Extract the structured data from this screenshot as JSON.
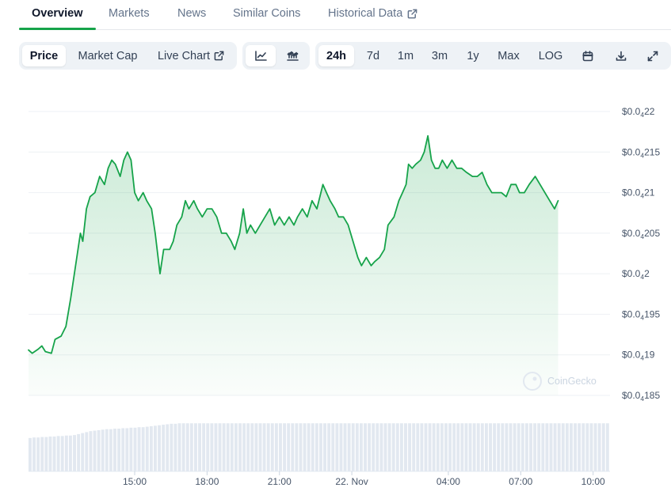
{
  "tabs": [
    {
      "label": "Overview",
      "active": true
    },
    {
      "label": "Markets"
    },
    {
      "label": "News"
    },
    {
      "label": "Similar Coins"
    },
    {
      "label": "Historical Data",
      "external": true
    }
  ],
  "toolbar": {
    "metric": [
      {
        "label": "Price",
        "active": true
      },
      {
        "label": "Market Cap"
      },
      {
        "label": "Live Chart",
        "external": true
      }
    ],
    "chart_style": [
      {
        "icon": "line-chart-icon",
        "active": true
      },
      {
        "icon": "candlestick-chart-icon"
      }
    ],
    "ranges": [
      {
        "label": "24h",
        "active": true
      },
      {
        "label": "7d"
      },
      {
        "label": "1m"
      },
      {
        "label": "3m"
      },
      {
        "label": "1y"
      },
      {
        "label": "Max"
      },
      {
        "label": "LOG"
      }
    ],
    "actions": [
      {
        "icon": "calendar-icon"
      },
      {
        "icon": "download-icon"
      },
      {
        "icon": "expand-icon"
      }
    ]
  },
  "watermark": "CoinGecko",
  "chart_data": {
    "type": "area",
    "line_color": "#16a34a",
    "fill_color": "#16a34a",
    "y_ticks": [
      {
        "value": 1.85e-05,
        "prefix": "$0.0",
        "sub": "4",
        "suffix": "185"
      },
      {
        "value": 1.9e-05,
        "prefix": "$0.0",
        "sub": "4",
        "suffix": "19"
      },
      {
        "value": 1.95e-05,
        "prefix": "$0.0",
        "sub": "4",
        "suffix": "195"
      },
      {
        "value": 2e-05,
        "prefix": "$0.0",
        "sub": "4",
        "suffix": "2"
      },
      {
        "value": 2.05e-05,
        "prefix": "$0.0",
        "sub": "4",
        "suffix": "205"
      },
      {
        "value": 2.1e-05,
        "prefix": "$0.0",
        "sub": "4",
        "suffix": "21"
      },
      {
        "value": 2.15e-05,
        "prefix": "$0.0",
        "sub": "4",
        "suffix": "215"
      },
      {
        "value": 2.2e-05,
        "prefix": "$0.0",
        "sub": "4",
        "suffix": "22"
      }
    ],
    "ylim": [
      1.85e-05,
      2.2e-05
    ],
    "x_ticks": [
      {
        "hour": 15,
        "label": "15:00"
      },
      {
        "hour": 18,
        "label": "18:00"
      },
      {
        "hour": 21,
        "label": "21:00"
      },
      {
        "hour": 24,
        "label": "22. Nov"
      },
      {
        "hour": 28,
        "label": "04:00"
      },
      {
        "hour": 31,
        "label": "07:00"
      },
      {
        "hour": 34,
        "label": "10:00"
      }
    ],
    "xlim": [
      10.6,
      34.7
    ],
    "series": [
      {
        "points": [
          [
            10.6,
            1.906e-05
          ],
          [
            10.75,
            1.902e-05
          ],
          [
            11.0,
            1.907e-05
          ],
          [
            11.15,
            1.911e-05
          ],
          [
            11.3,
            1.904e-05
          ],
          [
            11.55,
            1.902e-05
          ],
          [
            11.7,
            1.919e-05
          ],
          [
            11.95,
            1.923e-05
          ],
          [
            12.15,
            1.935e-05
          ],
          [
            12.35,
            1.97e-05
          ],
          [
            12.55,
            2.01e-05
          ],
          [
            12.75,
            2.05e-05
          ],
          [
            12.85,
            2.04e-05
          ],
          [
            13.0,
            2.08e-05
          ],
          [
            13.15,
            2.095e-05
          ],
          [
            13.35,
            2.1e-05
          ],
          [
            13.55,
            2.12e-05
          ],
          [
            13.75,
            2.11e-05
          ],
          [
            13.9,
            2.13e-05
          ],
          [
            14.05,
            2.14e-05
          ],
          [
            14.2,
            2.135e-05
          ],
          [
            14.4,
            2.12e-05
          ],
          [
            14.55,
            2.14e-05
          ],
          [
            14.7,
            2.15e-05
          ],
          [
            14.85,
            2.14e-05
          ],
          [
            15.0,
            2.1e-05
          ],
          [
            15.15,
            2.09e-05
          ],
          [
            15.35,
            2.1e-05
          ],
          [
            15.5,
            2.09e-05
          ],
          [
            15.7,
            2.08e-05
          ],
          [
            15.85,
            2.05e-05
          ],
          [
            16.05,
            2e-05
          ],
          [
            16.2,
            2.03e-05
          ],
          [
            16.45,
            2.03e-05
          ],
          [
            16.6,
            2.04e-05
          ],
          [
            16.75,
            2.06e-05
          ],
          [
            16.95,
            2.07e-05
          ],
          [
            17.1,
            2.09e-05
          ],
          [
            17.25,
            2.08e-05
          ],
          [
            17.45,
            2.09e-05
          ],
          [
            17.6,
            2.08e-05
          ],
          [
            17.8,
            2.07e-05
          ],
          [
            18.0,
            2.08e-05
          ],
          [
            18.2,
            2.08e-05
          ],
          [
            18.4,
            2.07e-05
          ],
          [
            18.6,
            2.05e-05
          ],
          [
            18.8,
            2.05e-05
          ],
          [
            19.0,
            2.04e-05
          ],
          [
            19.15,
            2.03e-05
          ],
          [
            19.35,
            2.05e-05
          ],
          [
            19.5,
            2.08e-05
          ],
          [
            19.65,
            2.05e-05
          ],
          [
            19.8,
            2.06e-05
          ],
          [
            20.0,
            2.05e-05
          ],
          [
            20.2,
            2.06e-05
          ],
          [
            20.4,
            2.07e-05
          ],
          [
            20.6,
            2.08e-05
          ],
          [
            20.8,
            2.06e-05
          ],
          [
            21.0,
            2.07e-05
          ],
          [
            21.2,
            2.06e-05
          ],
          [
            21.4,
            2.07e-05
          ],
          [
            21.6,
            2.06e-05
          ],
          [
            21.75,
            2.07e-05
          ],
          [
            21.95,
            2.08e-05
          ],
          [
            22.15,
            2.07e-05
          ],
          [
            22.35,
            2.09e-05
          ],
          [
            22.55,
            2.08e-05
          ],
          [
            22.8,
            2.11e-05
          ],
          [
            22.95,
            2.1e-05
          ],
          [
            23.1,
            2.09e-05
          ],
          [
            23.3,
            2.08e-05
          ],
          [
            23.45,
            2.07e-05
          ],
          [
            23.65,
            2.07e-05
          ],
          [
            23.85,
            2.06e-05
          ],
          [
            24.05,
            2.04e-05
          ],
          [
            24.25,
            2.02e-05
          ],
          [
            24.4,
            2.01e-05
          ],
          [
            24.6,
            2.02e-05
          ],
          [
            24.8,
            2.01e-05
          ],
          [
            24.95,
            2.015e-05
          ],
          [
            25.15,
            2.02e-05
          ],
          [
            25.35,
            2.03e-05
          ],
          [
            25.5,
            2.06e-05
          ],
          [
            25.75,
            2.07e-05
          ],
          [
            25.95,
            2.09e-05
          ],
          [
            26.1,
            2.1e-05
          ],
          [
            26.25,
            2.11e-05
          ],
          [
            26.35,
            2.135e-05
          ],
          [
            26.5,
            2.13e-05
          ],
          [
            26.65,
            2.135e-05
          ],
          [
            26.85,
            2.14e-05
          ],
          [
            27.0,
            2.15e-05
          ],
          [
            27.15,
            2.17e-05
          ],
          [
            27.3,
            2.14e-05
          ],
          [
            27.45,
            2.13e-05
          ],
          [
            27.6,
            2.13e-05
          ],
          [
            27.75,
            2.14e-05
          ],
          [
            27.95,
            2.13e-05
          ],
          [
            28.15,
            2.14e-05
          ],
          [
            28.35,
            2.13e-05
          ],
          [
            28.55,
            2.13e-05
          ],
          [
            28.75,
            2.125e-05
          ],
          [
            29.0,
            2.12e-05
          ],
          [
            29.2,
            2.12e-05
          ],
          [
            29.4,
            2.125e-05
          ],
          [
            29.6,
            2.11e-05
          ],
          [
            29.8,
            2.1e-05
          ],
          [
            30.0,
            2.1e-05
          ],
          [
            30.2,
            2.1e-05
          ],
          [
            30.4,
            2.095e-05
          ],
          [
            30.6,
            2.11e-05
          ],
          [
            30.8,
            2.11e-05
          ],
          [
            30.95,
            2.1e-05
          ],
          [
            31.15,
            2.1e-05
          ],
          [
            31.35,
            2.11e-05
          ],
          [
            31.6,
            2.12e-05
          ],
          [
            31.8,
            2.11e-05
          ],
          [
            32.0,
            2.1e-05
          ],
          [
            32.2,
            2.09e-05
          ],
          [
            32.4,
            2.08e-05
          ],
          [
            32.55,
            2.09e-05
          ]
        ]
      }
    ],
    "volume": {
      "bar_color": "#e2e8f0",
      "relative_values": [
        0.68,
        0.69,
        0.69,
        0.7,
        0.7,
        0.71,
        0.71,
        0.72,
        0.72,
        0.73,
        0.73,
        0.74,
        0.76,
        0.78,
        0.8,
        0.82,
        0.83,
        0.84,
        0.85,
        0.86,
        0.86,
        0.87,
        0.87,
        0.88,
        0.88,
        0.89,
        0.89,
        0.9,
        0.9,
        0.91,
        0.92,
        0.93,
        0.94,
        0.95,
        0.96,
        0.97,
        0.97,
        0.98,
        0.98,
        0.98,
        0.98,
        0.98,
        0.98,
        0.98,
        0.98,
        0.98,
        0.98,
        0.98,
        0.98,
        0.98,
        0.98,
        0.98,
        0.98,
        0.98,
        0.98,
        0.98,
        0.98,
        0.98,
        0.98,
        0.98,
        0.98,
        0.98,
        0.98,
        0.98,
        0.98,
        0.98,
        0.98,
        0.98,
        0.98,
        0.98,
        0.98,
        0.98,
        0.98,
        0.98,
        0.98,
        0.98,
        0.98,
        0.98,
        0.98,
        0.98,
        0.98,
        0.98,
        0.98,
        0.98,
        0.98,
        0.98,
        0.98,
        0.98,
        0.98,
        0.98,
        0.98,
        0.98,
        0.98,
        0.98,
        0.98,
        0.98,
        0.98,
        0.98,
        0.98,
        0.98,
        0.98,
        0.98,
        0.98,
        0.98,
        0.98,
        0.98,
        0.98,
        0.98,
        0.98,
        0.98,
        0.98,
        0.98,
        0.98,
        0.98,
        0.98,
        0.98,
        0.98,
        0.98,
        0.98,
        0.98,
        0.98,
        0.98,
        0.98,
        0.98,
        0.98,
        0.98,
        0.98,
        0.98,
        0.98,
        0.98,
        0.98,
        0.98,
        0.98,
        0.98,
        0.98,
        0.98,
        0.98,
        0.98,
        0.98,
        0.98,
        0.98,
        0.98,
        0.98,
        0.98
      ]
    }
  }
}
